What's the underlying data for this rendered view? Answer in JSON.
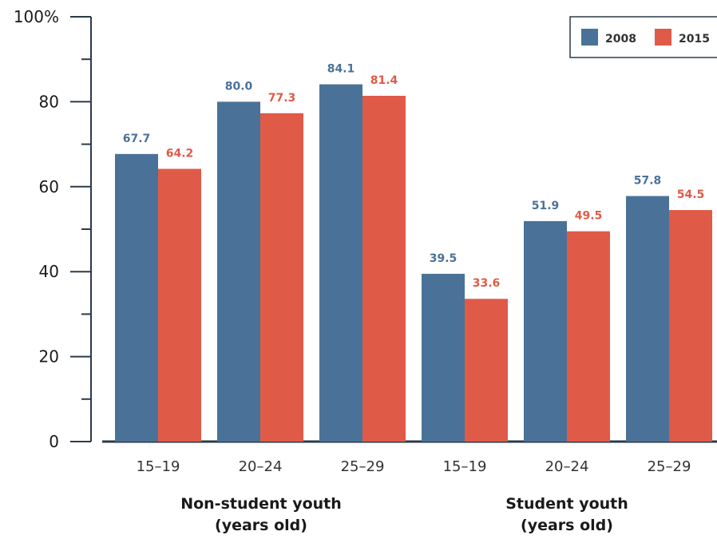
{
  "colors": {
    "series_2008": "#4a7298",
    "series_2015": "#e05a48",
    "axis": "#2b3a4a"
  },
  "chart_data": {
    "type": "bar",
    "ylabel": "",
    "xlabel": "",
    "ylim": [
      0,
      100
    ],
    "y_ticks": [
      0,
      20,
      40,
      60,
      80,
      100
    ],
    "y_tick_labels": [
      "0",
      "20",
      "40",
      "60",
      "80",
      "100%"
    ],
    "categories": [
      "15–19",
      "20–24",
      "25–29",
      "15–19",
      "20–24",
      "25–29"
    ],
    "groups": [
      {
        "label_line1": "Non-student youth",
        "label_line2": "(years old)"
      },
      {
        "label_line1": "Student youth",
        "label_line2": "(years old)"
      }
    ],
    "series": [
      {
        "name": "2008",
        "values": [
          67.7,
          80.0,
          84.1,
          39.5,
          51.9,
          57.8
        ],
        "labels": [
          "67.7",
          "80.0",
          "84.1",
          "39.5",
          "51.9",
          "57.8"
        ]
      },
      {
        "name": "2015",
        "values": [
          64.2,
          77.3,
          81.4,
          33.6,
          49.5,
          54.5
        ],
        "labels": [
          "64.2",
          "77.3",
          "81.4",
          "33.6",
          "49.5",
          "54.5"
        ]
      }
    ],
    "legend": "top-right",
    "grid": false
  }
}
